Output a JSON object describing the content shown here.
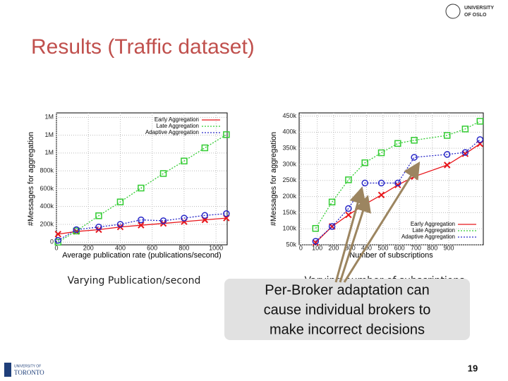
{
  "slide": {
    "title": "Results (Traffic dataset)",
    "caption_left": "Varying Publication/second",
    "caption_right": "Varying number of subscriptions",
    "callout": [
      "Per-Broker adaptation can",
      "cause individual brokers to",
      "make incorrect decisions"
    ],
    "page_number": "19",
    "logo_top": [
      "UNIVERSITY",
      "OF OSLO"
    ],
    "logo_bottom": [
      "UNIVERSITY OF",
      "TORONTO"
    ]
  },
  "chart_data": [
    {
      "type": "line",
      "xlabel": "Average publication rate (publications/second)",
      "ylabel": "#Messages for aggregation",
      "xlim": [
        0,
        1070
      ],
      "ylim": [
        -30000,
        1450000
      ],
      "xticks": [
        0,
        200,
        400,
        600,
        800,
        1000
      ],
      "yticks": [
        0,
        {
          "value": 200000,
          "label": "200k"
        },
        {
          "value": 400000,
          "label": "400k"
        },
        {
          "value": 600000,
          "label": "600k"
        },
        {
          "value": 800000,
          "label": "800k"
        },
        {
          "value": 1000000,
          "label": "1M"
        },
        {
          "value": 1200000,
          "label": "1M"
        },
        {
          "value": 1400000,
          "label": "1M"
        }
      ],
      "legend": "upper right",
      "x": [
        10,
        125,
        265,
        400,
        530,
        670,
        800,
        930,
        1065
      ],
      "series": [
        {
          "name": "Early Aggregation",
          "color": "#e8161b",
          "marker": "x",
          "values": [
            90000,
            120000,
            140000,
            170000,
            190000,
            210000,
            230000,
            250000,
            270000
          ]
        },
        {
          "name": "Late Aggregation",
          "color": "#33cc33",
          "marker": "square",
          "values": [
            0,
            125000,
            296000,
            451000,
            607000,
            770000,
            910000,
            1058000,
            1206000
          ]
        },
        {
          "name": "Adaptive Aggregation",
          "color": "#2929c8",
          "marker": "circle",
          "values": [
            20000,
            140000,
            170000,
            200000,
            250000,
            240000,
            270000,
            300000,
            320000
          ]
        }
      ]
    },
    {
      "type": "line",
      "xlabel": "Number of subscriptions",
      "ylabel": "#Messages for aggregation",
      "xlim": [
        -10,
        1110
      ],
      "ylim": [
        50000,
        460000
      ],
      "xticks": [
        0,
        100,
        200,
        300,
        400,
        500,
        600,
        700,
        800,
        900
      ],
      "yticks": [
        {
          "value": 50000,
          "label": "50k"
        },
        {
          "value": 100000,
          "label": "100k"
        },
        {
          "value": 150000,
          "label": "150k"
        },
        {
          "value": 200000,
          "label": "200k"
        },
        {
          "value": 250000,
          "label": "250k"
        },
        {
          "value": 300000,
          "label": "300k"
        },
        {
          "value": 350000,
          "label": "350k"
        },
        {
          "value": 400000,
          "label": "400k"
        },
        {
          "value": 450000,
          "label": "450k"
        }
      ],
      "legend": "lower right",
      "x": [
        90,
        190,
        290,
        390,
        490,
        590,
        690,
        890,
        1000,
        1090
      ],
      "series": [
        {
          "name": "Early Aggregation",
          "color": "#e8161b",
          "marker": "x",
          "values": [
            57000,
            107000,
            143000,
            176000,
            205000,
            236000,
            262000,
            298000,
            333000,
            364000
          ]
        },
        {
          "name": "Late Aggregation",
          "color": "#33cc33",
          "marker": "square",
          "values": [
            101000,
            183000,
            252000,
            305000,
            336000,
            365000,
            375000,
            390000,
            410000,
            434000
          ]
        },
        {
          "name": "Adaptive Aggregation",
          "color": "#2929c8",
          "marker": "circle",
          "values": [
            61000,
            107000,
            163000,
            242000,
            242000,
            242000,
            322000,
            331000,
            337000,
            377000
          ]
        }
      ]
    }
  ]
}
